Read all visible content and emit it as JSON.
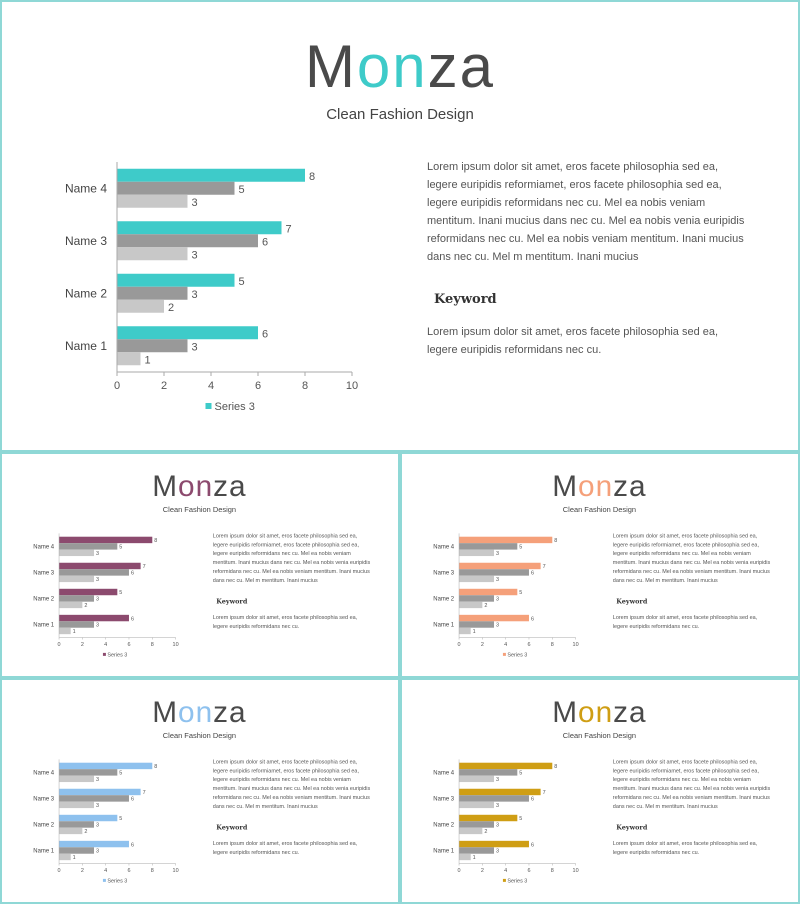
{
  "brand": {
    "title_prefix": "M",
    "title_highlight": "on",
    "title_suffix": "za",
    "subtitle": "Clean Fashion Design"
  },
  "content": {
    "paragraph1": "Lorem ipsum dolor sit amet, eros facete philosophia sed ea, legere euripidis reformiamet, eros facete philosophia sed ea, legere euripidis reformidans nec cu. Mel ea nobis veniam mentitum. Inani mucius dans nec cu. Mel ea nobis venia euripidis reformidans nec cu. Mel ea nobis veniam mentitum. Inani mucius dans nec cu. Mel m mentitum. Inani mucius",
    "keyword": "Keyword",
    "paragraph2": "Lorem ipsum dolor sit amet, eros facete philosophia sed ea, legere euripidis reformidans nec cu."
  },
  "slides": [
    {
      "accent": "#3ecbc9"
    },
    {
      "accent": "#8c4a6e"
    },
    {
      "accent": "#f5a07a"
    },
    {
      "accent": "#8ec1ee"
    },
    {
      "accent": "#cf9e14"
    }
  ],
  "colors": {
    "series_dark": "#999999",
    "series_light": "#c8c8c8"
  },
  "chart_data": {
    "type": "bar",
    "orientation": "horizontal",
    "categories": [
      "Name 1",
      "Name 2",
      "Name 3",
      "Name 4"
    ],
    "series": [
      {
        "name": "Series 3",
        "values": [
          6,
          5,
          7,
          8
        ]
      },
      {
        "values": [
          3,
          3,
          6,
          5
        ]
      },
      {
        "values": [
          1,
          2,
          3,
          3
        ]
      }
    ],
    "xlim": [
      0,
      10
    ],
    "xticks": [
      0,
      2,
      4,
      6,
      8,
      10
    ],
    "legend_position": "bottom",
    "data_labels": true
  }
}
